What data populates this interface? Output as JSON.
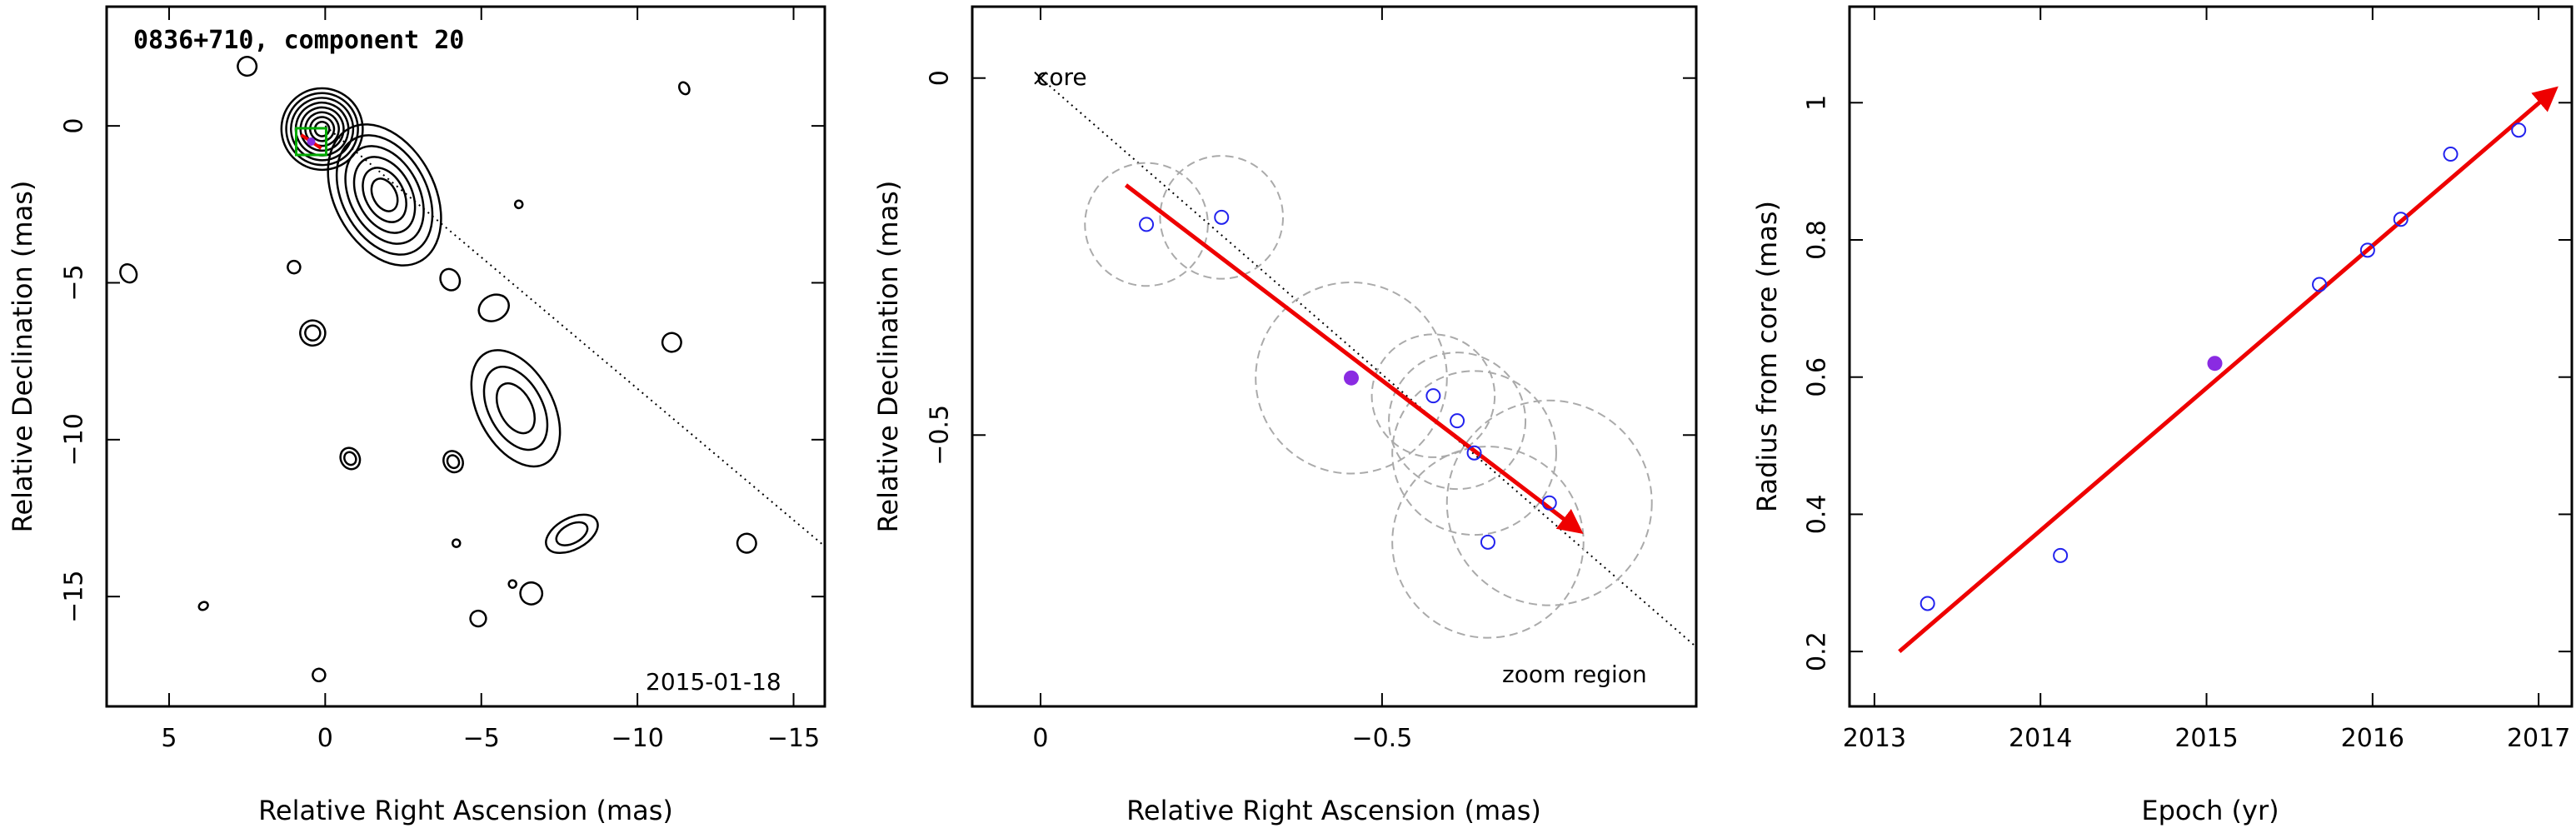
{
  "chart_data": [
    {
      "type": "contour",
      "title": "0836+710, component 20",
      "date_label": "2015-01-18",
      "xlabel": "Relative Right Ascension (mas)",
      "ylabel": "Relative Declination (mas)",
      "xlim": [
        7,
        -16
      ],
      "ylim": [
        -18.5,
        3.8
      ],
      "xticks": [
        5,
        0,
        -5,
        -10,
        -15
      ],
      "xtick_labels": [
        "5",
        "0",
        "−5",
        "−10",
        "−15"
      ],
      "yticks": [
        0,
        -5,
        -10,
        -15
      ],
      "ytick_labels": [
        "0",
        "−5",
        "−10",
        "−15"
      ],
      "core_position": [
        0,
        0
      ],
      "component_marker": [
        0.45,
        -0.5
      ],
      "direction_line": {
        "from": [
          0,
          0
        ],
        "to": [
          -16,
          -13.4
        ]
      },
      "contour_islands": [
        {
          "x": 0.1,
          "y": -0.1,
          "rx": 1.3,
          "ry": 1.3,
          "levels": 8
        },
        {
          "x": -1.9,
          "y": -2.2,
          "rx": 1.6,
          "ry": 2.4,
          "levels": 6
        },
        {
          "x": -6.1,
          "y": -9.0,
          "rx": 1.2,
          "ry": 2.0,
          "levels": 3
        },
        {
          "x": -7.9,
          "y": -13.0,
          "rx": 0.9,
          "ry": 0.5,
          "levels": 2
        },
        {
          "x": 0.4,
          "y": -6.6,
          "rx": 0.4,
          "ry": 0.4,
          "levels": 2
        },
        {
          "x": -0.8,
          "y": -10.6,
          "rx": 0.3,
          "ry": 0.35,
          "levels": 2
        },
        {
          "x": -4.1,
          "y": -10.7,
          "rx": 0.3,
          "ry": 0.35,
          "levels": 2
        },
        {
          "x": -11.1,
          "y": -6.9,
          "rx": 0.3,
          "ry": 0.3,
          "levels": 1
        },
        {
          "x": -4.0,
          "y": -4.9,
          "rx": 0.3,
          "ry": 0.35,
          "levels": 1
        },
        {
          "x": -13.5,
          "y": -13.3,
          "rx": 0.3,
          "ry": 0.3,
          "levels": 1
        },
        {
          "x": 6.3,
          "y": -4.7,
          "rx": 0.25,
          "ry": 0.3,
          "levels": 1
        },
        {
          "x": 2.5,
          "y": 1.9,
          "rx": 0.3,
          "ry": 0.3,
          "levels": 1
        },
        {
          "x": -6.6,
          "y": -14.9,
          "rx": 0.35,
          "ry": 0.35,
          "levels": 1
        },
        {
          "x": -4.9,
          "y": -15.7,
          "rx": 0.25,
          "ry": 0.25,
          "levels": 1
        },
        {
          "x": 0.2,
          "y": -17.5,
          "rx": 0.2,
          "ry": 0.2,
          "levels": 1
        },
        {
          "x": -5.4,
          "y": -5.8,
          "rx": 0.5,
          "ry": 0.4,
          "levels": 1
        },
        {
          "x": 1.0,
          "y": -4.5,
          "rx": 0.2,
          "ry": 0.2,
          "levels": 1
        },
        {
          "x": -11.5,
          "y": 1.2,
          "rx": 0.15,
          "ry": 0.2,
          "levels": 1
        },
        {
          "x": 3.9,
          "y": -15.3,
          "rx": 0.15,
          "ry": 0.12,
          "levels": 1
        },
        {
          "x": -6.2,
          "y": -2.5,
          "rx": 0.12,
          "ry": 0.12,
          "levels": 1
        },
        {
          "x": -4.2,
          "y": -13.3,
          "rx": 0.12,
          "ry": 0.12,
          "levels": 1
        },
        {
          "x": -6.0,
          "y": -14.6,
          "rx": 0.12,
          "ry": 0.12,
          "levels": 1
        }
      ]
    },
    {
      "type": "scatter",
      "xlabel": "Relative Right Ascension (mas)",
      "ylabel": "Relative Declination (mas)",
      "xlim": [
        0.1,
        -0.96
      ],
      "ylim": [
        -0.88,
        0.1
      ],
      "xticks": [
        0,
        -0.5
      ],
      "xtick_labels": [
        "0",
        "−0.5"
      ],
      "yticks": [
        0,
        -0.5
      ],
      "ytick_labels": [
        "0",
        "−0.5"
      ],
      "core_label": "core",
      "zoom_label": "zoom region",
      "points": [
        {
          "x": -0.155,
          "y": -0.205,
          "r": 0.09
        },
        {
          "x": -0.265,
          "y": -0.195,
          "r": 0.09
        },
        {
          "x": -0.575,
          "y": -0.445,
          "r": 0.09
        },
        {
          "x": -0.61,
          "y": -0.48,
          "r": 0.1
        },
        {
          "x": -0.635,
          "y": -0.525,
          "r": 0.12
        },
        {
          "x": -0.745,
          "y": -0.595,
          "r": 0.15
        },
        {
          "x": -0.655,
          "y": -0.65,
          "r": 0.14
        }
      ],
      "highlight_point": {
        "x": -0.455,
        "y": -0.42,
        "r": 0.14
      },
      "trend_arrow": {
        "from": [
          -0.125,
          -0.15
        ],
        "to": [
          -0.79,
          -0.635
        ]
      },
      "direction_line": {
        "from": [
          0,
          0
        ],
        "to": [
          -1.0,
          -0.83
        ]
      }
    },
    {
      "type": "scatter",
      "xlabel": "Epoch (yr)",
      "ylabel": "Radius from core (mas)",
      "xlim": [
        2012.85,
        2017.2
      ],
      "ylim": [
        0.12,
        1.14
      ],
      "xticks": [
        2013,
        2014,
        2015,
        2016,
        2017
      ],
      "xtick_labels": [
        "2013",
        "2014",
        "2015",
        "2016",
        "2017"
      ],
      "yticks": [
        0.2,
        0.4,
        0.6,
        0.8,
        1.0
      ],
      "ytick_labels": [
        "0.2",
        "0.4",
        "0.6",
        "0.8",
        "1"
      ],
      "points": [
        {
          "x": 2013.32,
          "y": 0.27
        },
        {
          "x": 2014.12,
          "y": 0.34
        },
        {
          "x": 2015.68,
          "y": 0.735
        },
        {
          "x": 2015.97,
          "y": 0.785
        },
        {
          "x": 2016.17,
          "y": 0.83
        },
        {
          "x": 2016.47,
          "y": 0.925
        },
        {
          "x": 2016.88,
          "y": 0.96
        }
      ],
      "highlight_point": {
        "x": 2015.05,
        "y": 0.62
      },
      "trend_arrow": {
        "from": [
          2013.15,
          0.2
        ],
        "to": [
          2017.1,
          1.02
        ]
      }
    }
  ],
  "colors": {
    "axis": "#000000",
    "contour": "#000000",
    "point": "#2222ee",
    "highlight": "#8a2be2",
    "arrow": "#ee0000",
    "circle": "#aaaaaa",
    "marker_box": "#00aa00",
    "guide_line": "#000000"
  }
}
